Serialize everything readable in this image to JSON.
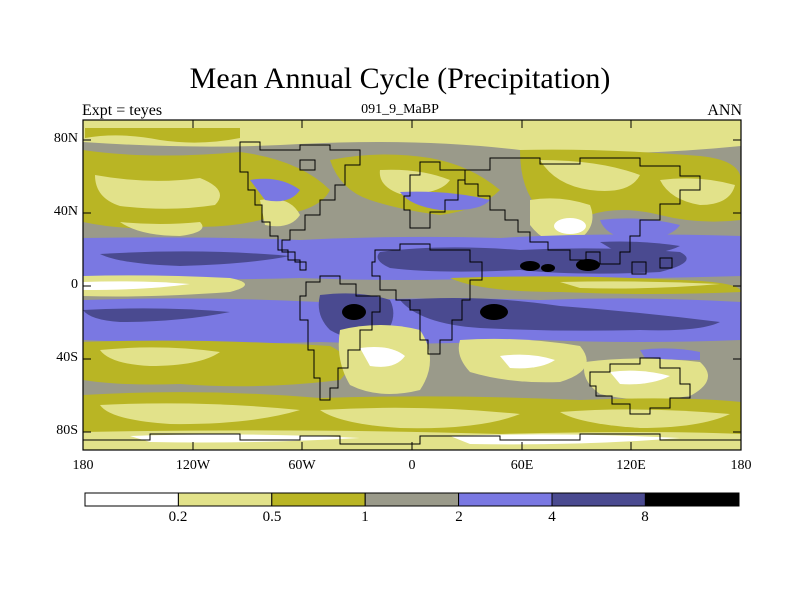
{
  "title": "Mean Annual Cycle (Precipitation)",
  "left_string": "Expt = teyes",
  "center_string": "091_9_MaBP",
  "right_string": "ANN",
  "lat_labels": [
    "80N",
    "40N",
    "0",
    "40S",
    "80S"
  ],
  "lon_labels": [
    "180",
    "120W",
    "60W",
    "0",
    "60E",
    "120E",
    "180"
  ],
  "colorbar": {
    "labels": [
      "0.2",
      "0.5",
      "1",
      "2",
      "4",
      "8"
    ],
    "colors": [
      "#ffffff",
      "#e2e28a",
      "#b9b524",
      "#9a9a8a",
      "#7a78e2",
      "#4a4a90",
      "#000000"
    ]
  }
}
